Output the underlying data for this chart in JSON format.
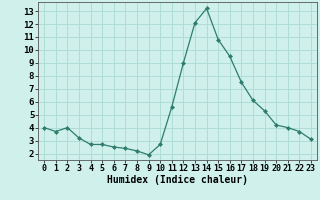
{
  "x": [
    0,
    1,
    2,
    3,
    4,
    5,
    6,
    7,
    8,
    9,
    10,
    11,
    12,
    13,
    14,
    15,
    16,
    17,
    18,
    19,
    20,
    21,
    22,
    23
  ],
  "y": [
    4.0,
    3.7,
    4.0,
    3.2,
    2.7,
    2.7,
    2.5,
    2.4,
    2.2,
    1.9,
    2.7,
    5.6,
    9.0,
    12.1,
    13.2,
    10.8,
    9.5,
    7.5,
    6.1,
    5.3,
    4.2,
    4.0,
    3.7,
    3.1
  ],
  "xlabel": "Humidex (Indice chaleur)",
  "line_color": "#2e7d6e",
  "marker": "D",
  "marker_size": 2.0,
  "bg_color": "#cff0eb",
  "grid_color": "#b0ddd6",
  "xlim": [
    -0.5,
    23.5
  ],
  "ylim": [
    1.5,
    13.7
  ],
  "xticks": [
    0,
    1,
    2,
    3,
    4,
    5,
    6,
    7,
    8,
    9,
    10,
    11,
    12,
    13,
    14,
    15,
    16,
    17,
    18,
    19,
    20,
    21,
    22,
    23
  ],
  "yticks": [
    2,
    3,
    4,
    5,
    6,
    7,
    8,
    9,
    10,
    11,
    12,
    13
  ],
  "tick_fontsize": 6.0,
  "xlabel_fontsize": 7.0
}
